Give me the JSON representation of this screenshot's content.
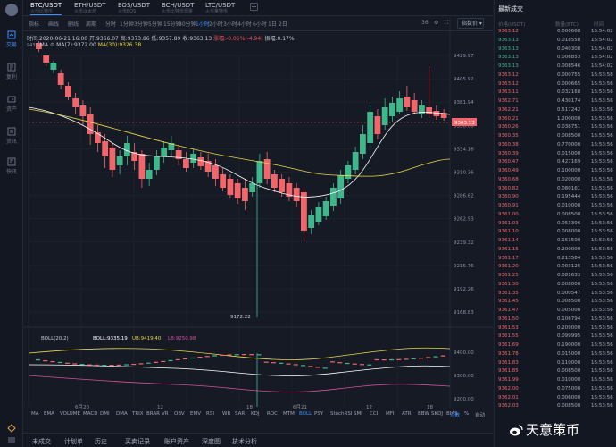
{
  "tabs": [
    {
      "pair": "BTC/USDT",
      "sub": "火币比特币",
      "active": true
    },
    {
      "pair": "ETH/USDT",
      "sub": "火币以太坊",
      "active": false
    },
    {
      "pair": "EOS/USDT",
      "sub": "火币EOS",
      "active": false
    },
    {
      "pair": "BCH/USDT",
      "sub": "火币比特币现金",
      "active": false
    },
    {
      "pair": "LTC/USDT",
      "sub": "火币莱特币",
      "active": false
    }
  ],
  "toolbar": {
    "items": [
      "指标",
      "画线",
      "删线"
    ],
    "times": [
      "周期",
      "分时",
      "1分钟",
      "3分钟",
      "5分钟",
      "15分钟",
      "30分钟",
      "1小时",
      "2小时",
      "3小时",
      "4小时",
      "6小时",
      "1日",
      "2日"
    ],
    "active_time": "1小时",
    "size": "36",
    "select": "指数价"
  },
  "nav": [
    "交易",
    "复利",
    "资产",
    "资讯",
    "快讯"
  ],
  "info": {
    "time": "时间:2020-06-21 16:00",
    "open": "开:9366.07",
    "high": "高:9373.86",
    "low": "低:9357.89",
    "close": "收:9363.13",
    "change": "涨幅:-0.05%(-4.94)",
    "amp": "振幅:0.17%"
  },
  "ma": {
    "label": "MA",
    "ma7": "MA(7):9372.00",
    "ma30": "MA(30):9326.38"
  },
  "boll": {
    "label": "BOLL(20,2)",
    "mid": "BOLL:9335.19",
    "ub": "UB:9419.40",
    "lb": "LB:9250.98"
  },
  "price_axis": [
    "9429.97",
    "9405.92",
    "9381.94",
    "9358.00",
    "9334.16",
    "9310.36",
    "9286.62",
    "9262.93",
    "9239.32",
    "9215.76",
    "9192.26",
    "9168.83"
  ],
  "boll_axis": [
    "9400.00",
    "9300.00",
    "9200.00"
  ],
  "current_price": "9363.13",
  "low_label": "9172.22",
  "x_axis": [
    "6月20",
    "12",
    "18",
    "6月21",
    "12",
    "18"
  ],
  "indicators": [
    "MA",
    "EMA",
    "VOLUME",
    "MACD",
    "DMI",
    "DMA",
    "TRIX",
    "BRAR",
    "VR",
    "OBV",
    "EMV",
    "RSI",
    "WR",
    "SAR",
    "KDJ",
    "ROC",
    "MTM",
    "BOLL",
    "PSY",
    "StochRSI",
    "SMI",
    "CCI",
    "MFI",
    "ATR",
    "BBW",
    "SKDJ",
    "BIAS"
  ],
  "active_indicator": "BOLL",
  "ind_extra": [
    "对数",
    "%",
    "自动"
  ],
  "bottom_tabs": [
    "未成交",
    "计划单",
    "历史",
    "买卖记录",
    "账户资产",
    "深度图",
    "技术分析"
  ],
  "right": {
    "title": "最新成交",
    "headers": [
      "价格(USDT)",
      "数量(BTC)",
      "时间"
    ]
  },
  "trades": [
    [
      "9363.12",
      "0.000668",
      "16:54:02",
      "sell"
    ],
    [
      "9363.13",
      "0.018558",
      "16:54:02",
      "buy"
    ],
    [
      "9363.13",
      "0.040308",
      "16:54:02",
      "buy"
    ],
    [
      "9363.13",
      "0.006853",
      "16:54:02",
      "buy"
    ],
    [
      "9363.13",
      "0.008546",
      "16:54:02",
      "buy"
    ],
    [
      "9363.12",
      "0.000755",
      "16:53:58",
      "sell"
    ],
    [
      "9363.12",
      "0.000665",
      "16:53:56",
      "sell"
    ],
    [
      "9363.11",
      "0.032168",
      "16:53:56",
      "sell"
    ],
    [
      "9362.71",
      "0.430174",
      "16:53:56",
      "sell"
    ],
    [
      "9362.21",
      "0.517242",
      "16:53:56",
      "sell"
    ],
    [
      "9360.21",
      "1.200000",
      "16:53:56",
      "sell"
    ],
    [
      "9360.26",
      "0.038751",
      "16:53:56",
      "sell"
    ],
    [
      "9360.35",
      "0.008500",
      "16:53:56",
      "sell"
    ],
    [
      "9360.38",
      "0.770000",
      "16:53:56",
      "sell"
    ],
    [
      "9360.39",
      "0.015000",
      "16:53:56",
      "sell"
    ],
    [
      "9360.47",
      "0.427169",
      "16:53:56",
      "sell"
    ],
    [
      "9360.49",
      "0.100000",
      "16:53:56",
      "sell"
    ],
    [
      "9360.68",
      "0.020000",
      "16:53:56",
      "sell"
    ],
    [
      "9360.82",
      "0.080161",
      "16:53:56",
      "sell"
    ],
    [
      "9360.90",
      "0.195444",
      "16:53:56",
      "sell"
    ],
    [
      "9360.91",
      "0.010000",
      "16:53:56",
      "sell"
    ],
    [
      "9361.00",
      "0.008500",
      "16:53:56",
      "sell"
    ],
    [
      "9361.03",
      "0.053396",
      "16:53:56",
      "sell"
    ],
    [
      "9361.10",
      "0.008000",
      "16:53:56",
      "sell"
    ],
    [
      "9361.14",
      "0.151500",
      "16:53:56",
      "sell"
    ],
    [
      "9361.15",
      "0.200000",
      "16:53:56",
      "sell"
    ],
    [
      "9361.17",
      "0.213584",
      "16:53:56",
      "sell"
    ],
    [
      "9361.20",
      "0.003125",
      "16:53:56",
      "sell"
    ],
    [
      "9361.25",
      "0.081633",
      "16:53:56",
      "sell"
    ],
    [
      "9361.30",
      "0.008000",
      "16:53:56",
      "sell"
    ],
    [
      "9361.35",
      "0.000547",
      "16:53:56",
      "sell"
    ],
    [
      "9361.45",
      "0.008500",
      "16:53:56",
      "sell"
    ],
    [
      "9361.47",
      "0.005000",
      "16:53:56",
      "sell"
    ],
    [
      "9361.50",
      "0.106794",
      "16:53:56",
      "sell"
    ],
    [
      "9361.53",
      "0.209000",
      "16:53:56",
      "sell"
    ],
    [
      "9361.55",
      "0.099995",
      "16:53:56",
      "sell"
    ],
    [
      "9361.69",
      "0.190000",
      "16:53:56",
      "sell"
    ],
    [
      "9361.78",
      "0.015000",
      "16:53:56",
      "sell"
    ],
    [
      "9361.83",
      "0.110000",
      "16:53:56",
      "sell"
    ],
    [
      "9361.85",
      "0.008500",
      "16:53:56",
      "sell"
    ],
    [
      "9361.99",
      "0.010000",
      "16:53:56",
      "sell"
    ],
    [
      "9362.00",
      "0.075000",
      "16:53:56",
      "sell"
    ],
    [
      "9362.01",
      "0.006000",
      "16:53:56",
      "sell"
    ],
    [
      "9362.03",
      "0.008500",
      "16:53:56",
      "sell"
    ]
  ],
  "watermark": "天意策币",
  "colors": {
    "up": "#3fb68b",
    "down": "#f0666b",
    "ma7": "#ffffff",
    "ma30": "#e8d84a",
    "boll_mid": "#ffffff",
    "ub": "#e8d84a",
    "lb": "#d64fa1",
    "accent": "#3e8eff"
  }
}
